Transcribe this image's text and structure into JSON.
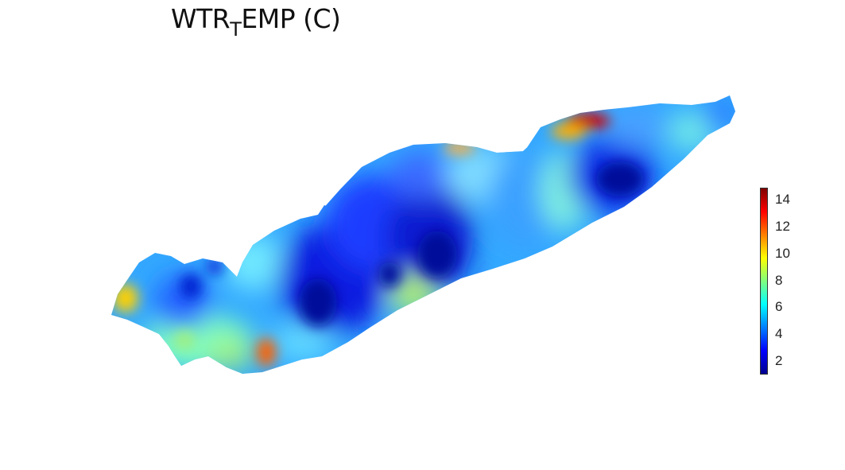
{
  "title": {
    "main_a": "WTR",
    "sub": "T",
    "main_b": "EMP (C)"
  },
  "colorbar": {
    "ticks": [
      "2",
      "4",
      "6",
      "8",
      "10",
      "12",
      "14"
    ],
    "colormap": "jet",
    "range": [
      0.8,
      14.8
    ]
  },
  "map": {
    "variable": "water temperature",
    "units": "C"
  }
}
